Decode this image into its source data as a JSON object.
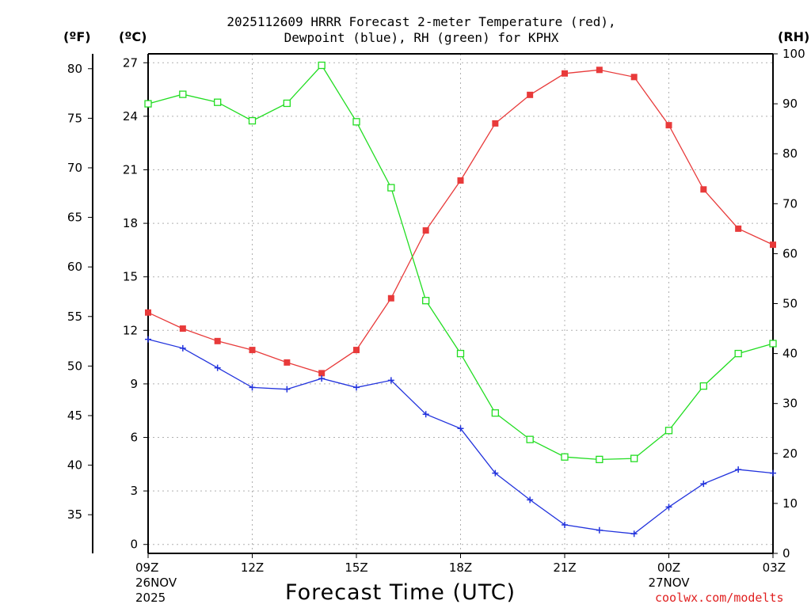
{
  "chart_data": {
    "type": "line",
    "title": "2025112609 HRRR Forecast 2-meter Temperature (red),",
    "subtitle": "Dewpoint (blue), RH (green) for KPHX",
    "xlabel": "Forecast Time (UTC)",
    "credit": "coolwx.com/modelts",
    "unit_labels": {
      "fahrenheit": "(ºF)",
      "celsius": "(ºC)",
      "rh": "(RH)"
    },
    "x_hours": [
      0,
      1,
      2,
      3,
      4,
      5,
      6,
      7,
      8,
      9,
      10,
      11,
      12,
      13,
      14,
      15,
      16,
      17,
      18
    ],
    "x_ticks": [
      {
        "hour": 0,
        "label": "09Z",
        "sub1": "26NOV",
        "sub2": "2025"
      },
      {
        "hour": 3,
        "label": "12Z",
        "sub1": "",
        "sub2": ""
      },
      {
        "hour": 6,
        "label": "15Z",
        "sub1": "",
        "sub2": ""
      },
      {
        "hour": 9,
        "label": "18Z",
        "sub1": "",
        "sub2": ""
      },
      {
        "hour": 12,
        "label": "21Z",
        "sub1": "",
        "sub2": ""
      },
      {
        "hour": 15,
        "label": "00Z",
        "sub1": "27NOV",
        "sub2": ""
      },
      {
        "hour": 18,
        "label": "03Z",
        "sub1": "",
        "sub2": ""
      }
    ],
    "celsius_axis": {
      "min": -0.5,
      "max": 27.5,
      "ticks": [
        0,
        3,
        6,
        9,
        12,
        15,
        18,
        21,
        24,
        27
      ]
    },
    "fahrenheit_ticks": [
      35,
      40,
      45,
      50,
      55,
      60,
      65,
      70,
      75,
      80
    ],
    "rh_axis": {
      "min": 0,
      "max": 100,
      "ticks": [
        0,
        10,
        20,
        30,
        40,
        50,
        60,
        70,
        80,
        90,
        100
      ]
    },
    "grid": true,
    "series": [
      {
        "name": "2-meter Temperature",
        "axis": "celsius",
        "color": "#e83a3a",
        "marker": "filled-square",
        "values": [
          13.0,
          12.1,
          11.4,
          10.9,
          10.2,
          9.6,
          10.9,
          13.8,
          17.6,
          20.4,
          23.6,
          25.2,
          26.4,
          26.6,
          26.2,
          23.5,
          19.9,
          17.7,
          16.8
        ]
      },
      {
        "name": "Dewpoint",
        "axis": "celsius",
        "color": "#2233dd",
        "marker": "plus",
        "values": [
          11.5,
          11.0,
          9.9,
          8.8,
          8.7,
          9.3,
          8.8,
          9.2,
          7.3,
          6.5,
          4.0,
          2.5,
          1.1,
          0.8,
          0.6,
          2.1,
          3.4,
          4.2,
          4.0
        ]
      },
      {
        "name": "RH",
        "axis": "rh",
        "color": "#22dd22",
        "marker": "open-square",
        "values": [
          90.0,
          91.9,
          90.3,
          86.6,
          90.1,
          97.7,
          86.4,
          73.2,
          50.6,
          40.0,
          28.1,
          22.8,
          19.3,
          18.8,
          19.0,
          24.6,
          33.5,
          40.0,
          42.0
        ]
      }
    ]
  }
}
